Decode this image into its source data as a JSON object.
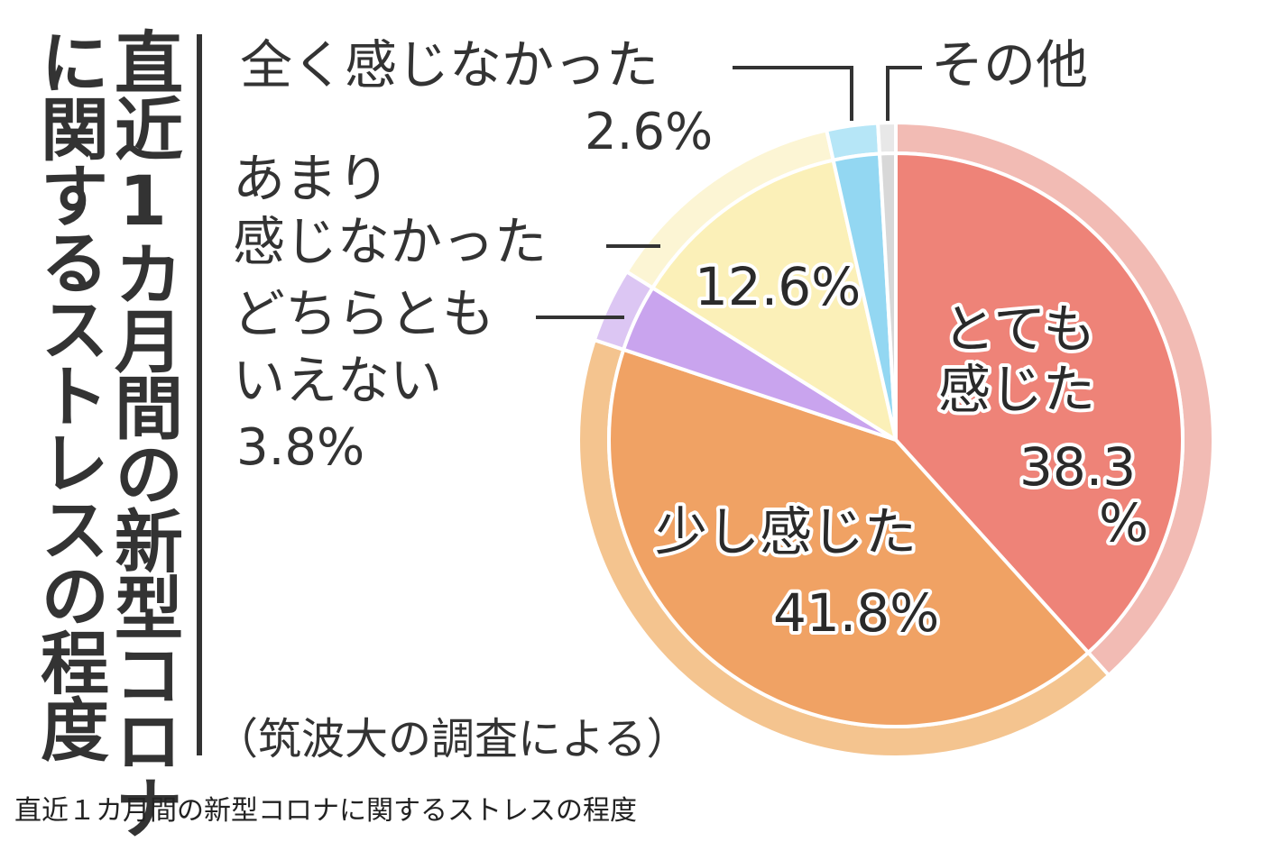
{
  "figure": {
    "title_line1": "直近1カ月間の新型コロナ",
    "title_line2": "に関するストレスの程度",
    "source_note": "（筑波大の調査による）",
    "caption": "直近１カ月間の新型コロナに関するストレスの程度"
  },
  "callouts": {
    "none": {
      "name": "全く感じなかった",
      "pct": "2.6%"
    },
    "little": {
      "name1": "あまり",
      "name2": "感じなかった"
    },
    "neutral": {
      "name1": "どちらとも",
      "name2": "いえない",
      "pct": "3.8%"
    },
    "other": {
      "name": "その他"
    }
  },
  "colors": {
    "very_much": "#ee8378",
    "somewhat": "#f0a264",
    "neutral": "#c9a4ee",
    "little": "#fbf0b8",
    "none": "#93d7f2",
    "other": "#d8d8d8",
    "ring_very_much": "#f2bbb4",
    "ring_somewhat": "#f4c48f",
    "ring_neutral": "#dcc6f3",
    "ring_little": "#fcf5d4",
    "ring_none": "#b6e6f7",
    "ring_other": "#e8e8e8"
  },
  "chart_data": {
    "type": "pie",
    "title": "直近1カ月間の新型コロナに関するストレスの程度",
    "start": "12 o'clock, clockwise",
    "slices": [
      {
        "label": "とても感じた",
        "value": 38.3,
        "display": "38.3%",
        "color_key": "very_much"
      },
      {
        "label": "少し感じた",
        "value": 41.8,
        "display": "41.8%",
        "color_key": "somewhat"
      },
      {
        "label": "どちらともいえない",
        "value": 3.8,
        "display": "3.8%",
        "color_key": "neutral"
      },
      {
        "label": "あまり感じなかった",
        "value": 12.6,
        "display": "12.6%",
        "color_key": "little"
      },
      {
        "label": "全く感じなかった",
        "value": 2.6,
        "display": "2.6%",
        "color_key": "none"
      },
      {
        "label": "その他",
        "value": 0.9,
        "display": "",
        "color_key": "other"
      }
    ],
    "inside_labels": {
      "very_much_line1": "とても",
      "very_much_line2": "感じた",
      "very_much_pct1": "38.3",
      "very_much_pct2": "%",
      "somewhat_line1": "少し感じた",
      "somewhat_pct": "41.8%",
      "little_pct": "12.6%"
    }
  }
}
